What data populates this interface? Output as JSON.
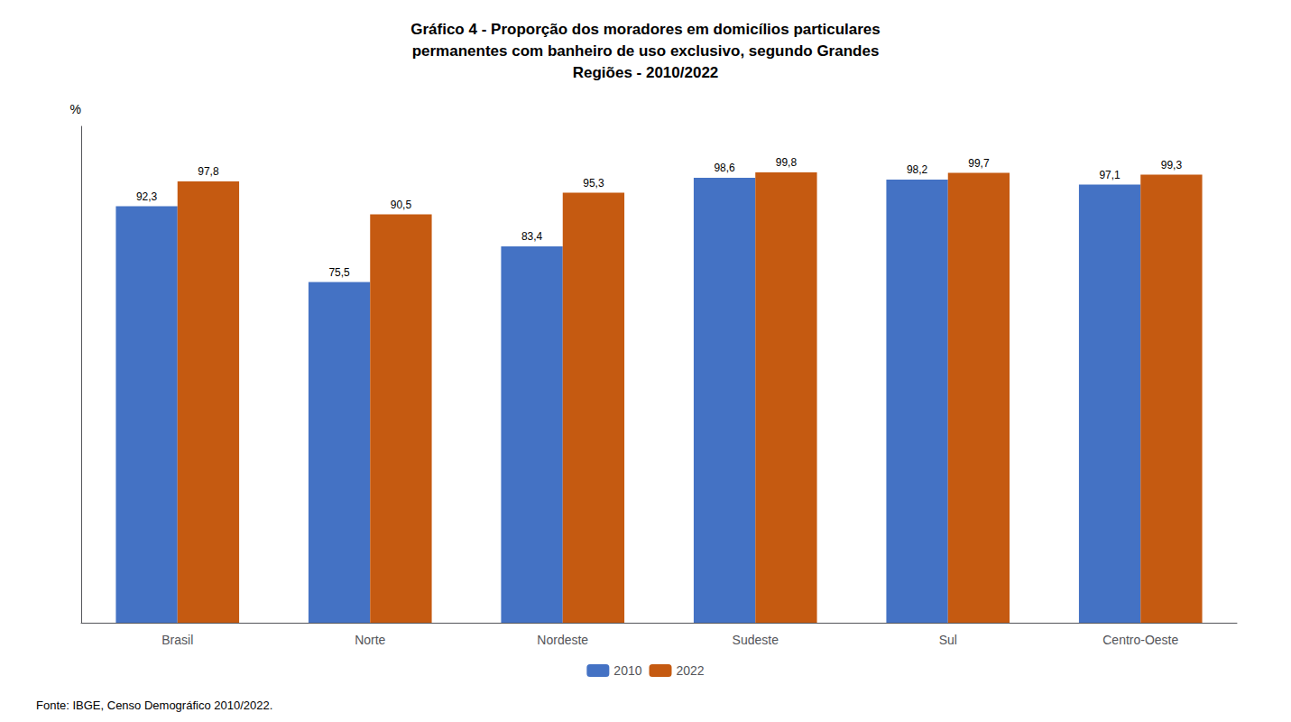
{
  "chart_data": {
    "type": "bar",
    "title": "Gráfico 4 - Proporção dos moradores em domicílios particulares\npermanentes com banheiro de uso exclusivo, segundo Grandes\nRegiões - 2010/2022",
    "ylabel": "%",
    "source": "Fonte: IBGE, Censo Demográfico 2010/2022.",
    "categories": [
      "Brasil",
      "Norte",
      "Nordeste",
      "Sudeste",
      "Sul",
      "Centro-Oeste"
    ],
    "series": [
      {
        "name": "2010",
        "color": "#4472C4",
        "values": [
          92.3,
          75.5,
          83.4,
          98.6,
          98.2,
          97.1
        ],
        "value_labels": [
          "92,3",
          "75,5",
          "83,4",
          "98,6",
          "98,2",
          "97,1"
        ]
      },
      {
        "name": "2022",
        "color": "#C55A11",
        "values": [
          97.8,
          90.5,
          95.3,
          99.8,
          99.7,
          99.3
        ],
        "value_labels": [
          "97,8",
          "90,5",
          "95,3",
          "99,8",
          "99,7",
          "99,3"
        ]
      }
    ],
    "ylim": [
      0,
      110
    ],
    "tick_labels": "x",
    "data_labels": true,
    "grid": false,
    "legend": "bottom"
  }
}
